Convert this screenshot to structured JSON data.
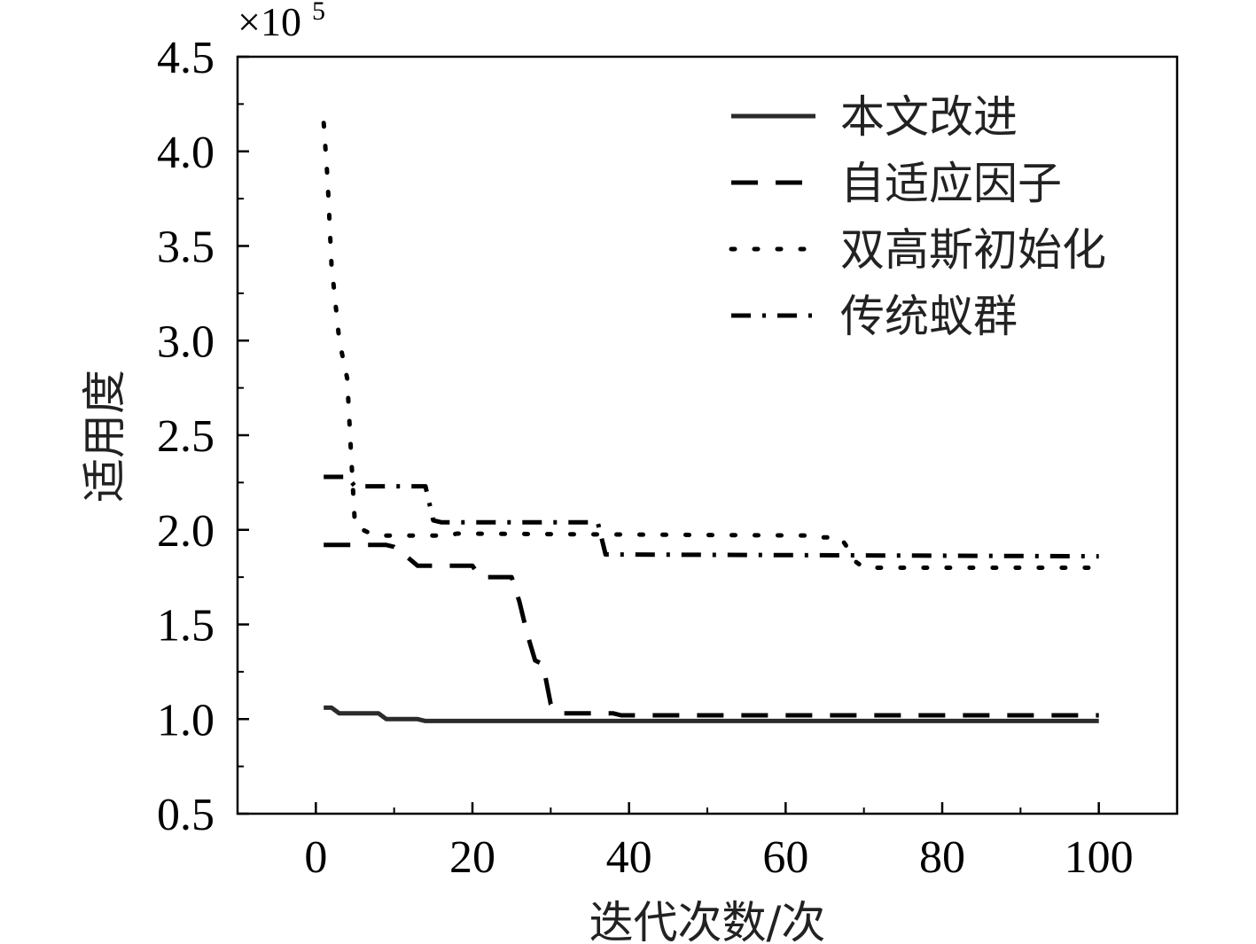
{
  "chart_data": {
    "type": "line",
    "title": "",
    "xlabel": "迭代次数/次",
    "ylabel": "适用度",
    "y_multiplier": {
      "base": "×10",
      "exponent": "5"
    },
    "xlim": [
      -10,
      110
    ],
    "ylim": [
      0.5,
      4.5
    ],
    "xticks": [
      "0",
      "20",
      "40",
      "60",
      "80",
      "100"
    ],
    "yticks": [
      "0.5",
      "1.0",
      "1.5",
      "2.0",
      "2.5",
      "3.0",
      "3.5",
      "4.0",
      "4.5"
    ],
    "legend_position": "top-right",
    "grid": false,
    "series": [
      {
        "name": "本文改进",
        "style": "solid",
        "color": "#2b2b2b",
        "points": [
          [
            1,
            1.06
          ],
          [
            2,
            1.06
          ],
          [
            3,
            1.03
          ],
          [
            8,
            1.03
          ],
          [
            9,
            1.0
          ],
          [
            13,
            1.0
          ],
          [
            14,
            0.99
          ],
          [
            100,
            0.99
          ]
        ]
      },
      {
        "name": "自适应因子",
        "style": "dashed",
        "color": "#000000",
        "points": [
          [
            1,
            1.92
          ],
          [
            9,
            1.92
          ],
          [
            10,
            1.91
          ],
          [
            11,
            1.88
          ],
          [
            13,
            1.81
          ],
          [
            20,
            1.81
          ],
          [
            21,
            1.75
          ],
          [
            25,
            1.75
          ],
          [
            26,
            1.62
          ],
          [
            27,
            1.45
          ],
          [
            28,
            1.31
          ],
          [
            29,
            1.29
          ],
          [
            30,
            1.08
          ],
          [
            31,
            1.03
          ],
          [
            38,
            1.03
          ],
          [
            39,
            1.02
          ],
          [
            100,
            1.02
          ]
        ]
      },
      {
        "name": "双高斯初始化",
        "style": "dotted",
        "color": "#000000",
        "points": [
          [
            1,
            4.15
          ],
          [
            1.5,
            3.85
          ],
          [
            2,
            3.4
          ],
          [
            3,
            3.0
          ],
          [
            4,
            2.8
          ],
          [
            4.5,
            2.4
          ],
          [
            5,
            2.02
          ],
          [
            7,
            1.98
          ],
          [
            9,
            1.97
          ],
          [
            17,
            1.97
          ],
          [
            18,
            1.98
          ],
          [
            63,
            1.97
          ],
          [
            64,
            1.96
          ],
          [
            67,
            1.96
          ],
          [
            68,
            1.9
          ],
          [
            69,
            1.83
          ],
          [
            70,
            1.8
          ],
          [
            100,
            1.8
          ]
        ]
      },
      {
        "name": "传统蚁群",
        "style": "dashdot",
        "color": "#000000",
        "points": [
          [
            1,
            2.28
          ],
          [
            4,
            2.28
          ],
          [
            5,
            2.23
          ],
          [
            14,
            2.23
          ],
          [
            15,
            2.05
          ],
          [
            16,
            2.04
          ],
          [
            36,
            2.04
          ],
          [
            37,
            1.87
          ],
          [
            100,
            1.86
          ]
        ]
      }
    ]
  }
}
